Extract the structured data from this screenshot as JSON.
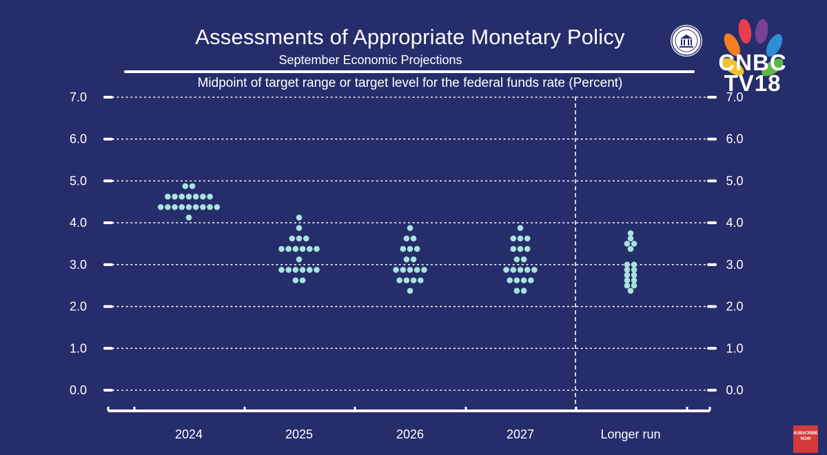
{
  "header": {
    "title": "Assessments of Appropriate Monetary Policy",
    "subtitle": "September Economic Projections"
  },
  "branding": {
    "channel_line1": "CNBC",
    "channel_line2": "TV18",
    "seal_icon": "federal-reserve-seal-icon",
    "subscribe_line1": "SUBSCRIBE",
    "subscribe_line2": "NOW"
  },
  "colors": {
    "background": "#262d6b",
    "dot": "#a9e3dc",
    "grid": "#ffffff",
    "subscribe_badge": "#d43a3a"
  },
  "chart_data": {
    "type": "scatter",
    "title": "Assessments of Appropriate Monetary Policy",
    "subtitle": "September Economic Projections",
    "ylabel": "Midpoint of target range or target level for the federal funds rate (Percent)",
    "xlabel": "",
    "categories": [
      "2024",
      "2025",
      "2026",
      "2027",
      "Longer run"
    ],
    "ylim": [
      0,
      7
    ],
    "yticks": [
      "0.0",
      "1.0",
      "2.0",
      "3.0",
      "4.0",
      "5.0",
      "6.0",
      "7.0"
    ],
    "grid": true,
    "grid_style": "dotted",
    "separator_before": "Longer run",
    "dot_counts": [
      {
        "category": "2024",
        "levels": [
          {
            "y": 4.875,
            "n": 2
          },
          {
            "y": 4.625,
            "n": 7
          },
          {
            "y": 4.375,
            "n": 9
          },
          {
            "y": 4.125,
            "n": 1
          }
        ]
      },
      {
        "category": "2025",
        "levels": [
          {
            "y": 4.125,
            "n": 1
          },
          {
            "y": 3.875,
            "n": 1
          },
          {
            "y": 3.625,
            "n": 3
          },
          {
            "y": 3.375,
            "n": 6
          },
          {
            "y": 3.125,
            "n": 1
          },
          {
            "y": 2.875,
            "n": 6
          },
          {
            "y": 2.625,
            "n": 2
          }
        ]
      },
      {
        "category": "2026",
        "levels": [
          {
            "y": 3.875,
            "n": 1
          },
          {
            "y": 3.625,
            "n": 2
          },
          {
            "y": 3.375,
            "n": 3
          },
          {
            "y": 3.125,
            "n": 2
          },
          {
            "y": 2.875,
            "n": 5
          },
          {
            "y": 2.625,
            "n": 4
          },
          {
            "y": 2.375,
            "n": 1
          }
        ]
      },
      {
        "category": "2027",
        "levels": [
          {
            "y": 3.875,
            "n": 1
          },
          {
            "y": 3.625,
            "n": 3
          },
          {
            "y": 3.375,
            "n": 3
          },
          {
            "y": 3.125,
            "n": 2
          },
          {
            "y": 2.875,
            "n": 5
          },
          {
            "y": 2.625,
            "n": 4
          },
          {
            "y": 2.375,
            "n": 2
          }
        ]
      },
      {
        "category": "Longer run",
        "levels": [
          {
            "y": 3.75,
            "n": 1
          },
          {
            "y": 3.625,
            "n": 1
          },
          {
            "y": 3.5,
            "n": 2
          },
          {
            "y": 3.375,
            "n": 1
          },
          {
            "y": 3.0,
            "n": 2
          },
          {
            "y": 2.875,
            "n": 2
          },
          {
            "y": 2.75,
            "n": 2
          },
          {
            "y": 2.625,
            "n": 2
          },
          {
            "y": 2.5,
            "n": 2
          },
          {
            "y": 2.375,
            "n": 1
          }
        ]
      }
    ]
  }
}
